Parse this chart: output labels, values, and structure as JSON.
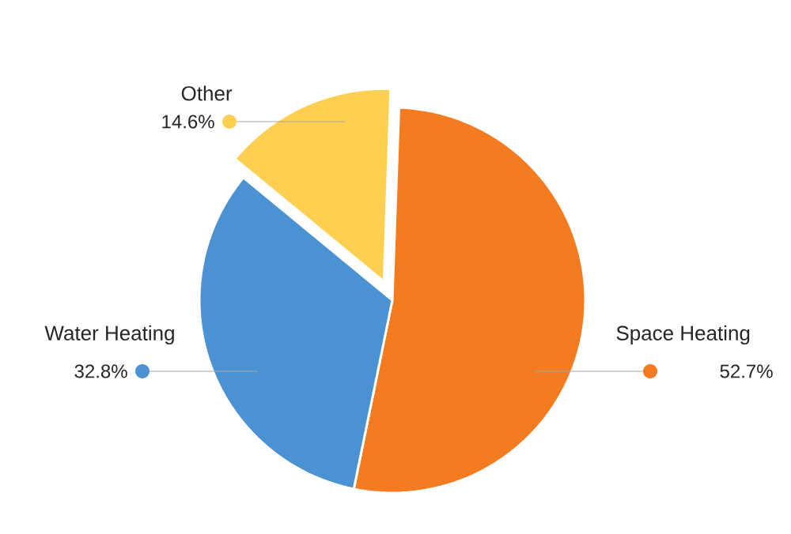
{
  "chart_data": {
    "type": "pie",
    "categories": [
      "Space Heating",
      "Water Heating",
      "Other"
    ],
    "values": [
      52.7,
      32.8,
      14.6
    ],
    "value_labels": [
      "52.7%",
      "32.8%",
      "14.6%"
    ],
    "colors": [
      "#f47b20",
      "#4a92d2",
      "#ffcf52"
    ]
  }
}
